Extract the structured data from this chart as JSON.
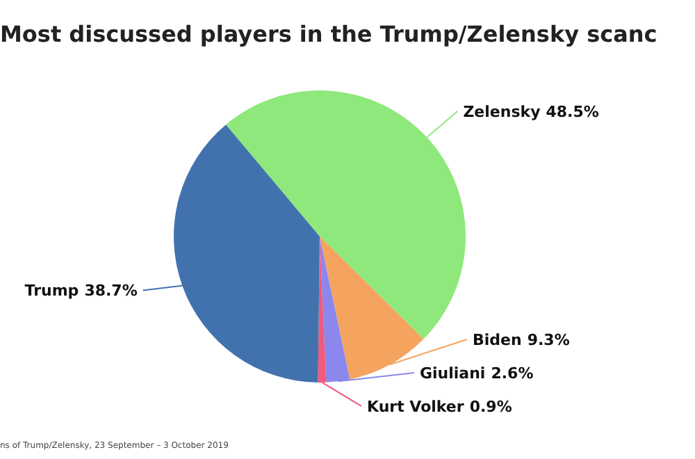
{
  "chart_data": {
    "type": "pie",
    "title": "Most discussed players in the Trump/Zelensky scanc",
    "categories": [
      "Zelensky",
      "Biden",
      "Giuliani",
      "Kurt Volker",
      "Trump"
    ],
    "values": [
      48.5,
      9.3,
      2.6,
      0.9,
      38.7
    ],
    "colors": [
      "#8fe87b",
      "#f5a460",
      "#8b87ec",
      "#ef5a7e",
      "#4272ae"
    ],
    "value_labels": [
      "48.5%",
      "9.3%",
      "2.6%",
      "0.9%",
      "38.7%"
    ],
    "annotations": [
      "ns of Trump/Zelensky, 23 September – 3 October 2019"
    ]
  }
}
